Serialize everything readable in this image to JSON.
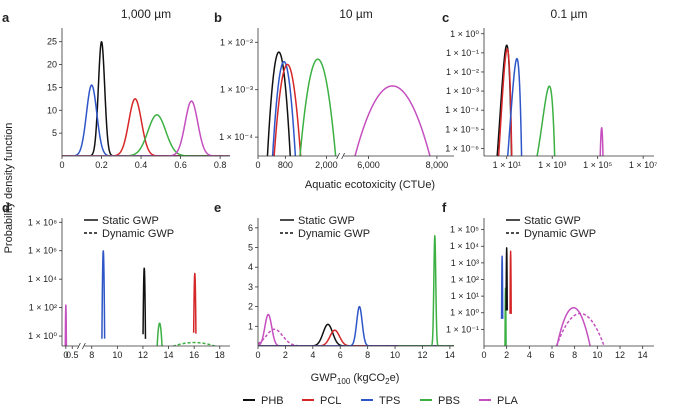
{
  "figure": {
    "ylabel": "Probability density function",
    "xlabel_top": "Aquatic ecotoxicity (CTUe)",
    "xlabel_bottom_main": "GWP",
    "xlabel_bottom_sub": "100",
    "xlabel_bottom_unit_pre": " (kgCO",
    "xlabel_bottom_unit_sub": "2",
    "xlabel_bottom_unit_post": "e)"
  },
  "legend_bottom": [
    {
      "name": "PHB",
      "color": "#111111"
    },
    {
      "name": "PCL",
      "color": "#d62728"
    },
    {
      "name": "TPS",
      "color": "#2e56c8"
    },
    {
      "name": "PBS",
      "color": "#3cb043"
    },
    {
      "name": "PLA",
      "color": "#c54fbf"
    }
  ],
  "gwp_legend": {
    "static": "Static GWP",
    "dynamic": "Dynamic GWP"
  },
  "chart_data": [
    {
      "id": "a",
      "panel_label": "a",
      "title": "1,000 µm",
      "type": "line",
      "xscale": "linear",
      "yscale": "linear",
      "xlim": [
        0,
        0.85
      ],
      "ylim": [
        0,
        28
      ],
      "xticks": [
        0,
        0.2,
        0.4,
        0.6,
        0.8
      ],
      "xtick_labels": [
        "0",
        "0.2",
        "0.4",
        "0.6",
        "0.8"
      ],
      "yticks": [
        5,
        10,
        15,
        20,
        25
      ],
      "ytick_labels": [
        "5",
        "10",
        "15",
        "20",
        "25"
      ],
      "series": [
        {
          "name": "PHB",
          "style": "solid",
          "peaks": [
            {
              "mu": 0.2,
              "sd": 0.016,
              "amp": 25
            }
          ]
        },
        {
          "name": "TPS",
          "style": "solid",
          "peaks": [
            {
              "mu": 0.15,
              "sd": 0.026,
              "amp": 15.5
            }
          ]
        },
        {
          "name": "PCL",
          "style": "solid",
          "peaks": [
            {
              "mu": 0.37,
              "sd": 0.032,
              "amp": 12.5
            }
          ]
        },
        {
          "name": "PBS",
          "style": "solid",
          "peaks": [
            {
              "mu": 0.48,
              "sd": 0.045,
              "amp": 9
            }
          ]
        },
        {
          "name": "PLA",
          "style": "solid",
          "peaks": [
            {
              "mu": 0.655,
              "sd": 0.032,
              "amp": 12
            }
          ]
        }
      ]
    },
    {
      "id": "b",
      "panel_label": "b",
      "title": "10 µm",
      "type": "line",
      "xscale": "broken",
      "yscale": "log",
      "xsegments": [
        [
          0,
          2300
        ],
        [
          5300,
          8500
        ]
      ],
      "axis_break": true,
      "ylim": [
        4e-05,
        0.02
      ],
      "xticks": [
        0,
        800,
        2000,
        6000,
        8000
      ],
      "xtick_labels": [
        "0",
        "800",
        "2,000",
        "6,000",
        "8,000"
      ],
      "yticks": [
        0.0001,
        0.001,
        0.01
      ],
      "ytick_labels": [
        "1 × 10⁻⁴",
        "1 × 10⁻³",
        "1 × 10⁻²"
      ],
      "series": [
        {
          "name": "PHB",
          "style": "solid",
          "peaks": [
            {
              "mu": 610,
              "sd": 105,
              "amp": 0.0062
            }
          ]
        },
        {
          "name": "TPS",
          "style": "solid",
          "peaks": [
            {
              "mu": 760,
              "sd": 110,
              "amp": 0.0039
            }
          ]
        },
        {
          "name": "PCL",
          "style": "solid",
          "peaks": [
            {
              "mu": 860,
              "sd": 130,
              "amp": 0.0034
            }
          ]
        },
        {
          "name": "PBS",
          "style": "solid",
          "peaks": [
            {
              "mu": 1750,
              "sd": 170,
              "amp": 0.0044
            }
          ]
        },
        {
          "name": "PLA",
          "style": "solid",
          "peaks": [
            {
              "mu": 6700,
              "sd": 420,
              "amp": 0.0012
            }
          ]
        }
      ]
    },
    {
      "id": "c",
      "panel_label": "c",
      "title": "0.1 µm",
      "type": "line",
      "xscale": "log",
      "yscale": "log",
      "xlim": [
        1,
        30000000
      ],
      "ylim": [
        4e-07,
        2
      ],
      "xticks": [
        10,
        1000,
        100000,
        10000000
      ],
      "xtick_labels": [
        "1 × 10¹",
        "1 × 10³",
        "1 × 10⁵",
        "1 × 10⁷"
      ],
      "yticks": [
        1e-06,
        1e-05,
        0.0001,
        0.001,
        0.01,
        0.1,
        1
      ],
      "ytick_labels": [
        "1 × 10⁻⁶",
        "1 × 10⁻⁵",
        "1 × 10⁻⁴",
        "1 × 10⁻³",
        "1 × 10⁻²",
        "1 × 10⁻¹",
        "1 × 10⁰"
      ],
      "series": [
        {
          "name": "PHB",
          "style": "solid",
          "peaks": [
            {
              "mu": 10,
              "sd": 1.2,
              "amp": 0.25
            }
          ]
        },
        {
          "name": "PCL",
          "style": "solid",
          "peaks": [
            {
              "mu": 10.5,
              "sd": 1.2,
              "amp": 0.16
            }
          ]
        },
        {
          "name": "TPS",
          "style": "solid",
          "peaks": [
            {
              "mu": 28,
              "sd": 3.5,
              "amp": 0.05
            }
          ]
        },
        {
          "name": "PBS",
          "style": "solid",
          "peaks": [
            {
              "mu": 750,
              "sd": 130,
              "amp": 0.0018
            }
          ]
        },
        {
          "name": "PLA",
          "style": "solid",
          "peaks": [
            {
              "mu": 150000,
              "sd": 8000,
              "amp": 1.2e-05
            }
          ]
        }
      ]
    },
    {
      "id": "d",
      "panel_label": "d",
      "type": "line",
      "xscale": "broken",
      "yscale": "log",
      "xsegments": [
        [
          -0.3,
          0.9
        ],
        [
          7.5,
          18.8
        ]
      ],
      "axis_break": true,
      "ylim": [
        0.2,
        200000000
      ],
      "xticks": [
        0,
        0.5,
        8,
        10,
        12,
        14,
        16,
        18
      ],
      "xtick_labels": [
        "0",
        "0.5",
        "8",
        "10",
        "12",
        "14",
        "16",
        "18"
      ],
      "yticks": [
        1,
        100,
        10000,
        1000000,
        100000000
      ],
      "ytick_labels": [
        "1 × 10⁰",
        "1 × 10²",
        "1 × 10⁴",
        "1 × 10⁶",
        "1 × 10⁸"
      ],
      "series": [
        {
          "name": "PLA",
          "style": "solid",
          "peaks": [
            {
              "mu": 0,
              "sd": 0.012,
              "amp": 150
            }
          ]
        },
        {
          "name": "TPS",
          "style": "solid",
          "peaks": [
            {
              "mu": 8.9,
              "sd": 0.02,
              "amp": 1000000
            }
          ]
        },
        {
          "name": "PHB",
          "style": "solid",
          "peaks": [
            {
              "mu": 12.1,
              "sd": 0.02,
              "amp": 60000
            }
          ]
        },
        {
          "name": "PBS",
          "style": "solid",
          "peaks": [
            {
              "mu": 13.3,
              "sd": 0.07,
              "amp": 8
            }
          ]
        },
        {
          "name": "PCL",
          "style": "solid",
          "peaks": [
            {
              "mu": 16.05,
              "sd": 0.02,
              "amp": 25000
            }
          ]
        },
        {
          "name": "PBS",
          "style": "dashed",
          "peaks": [
            {
              "mu": 16,
              "sd": 1.5,
              "amp": 0.35
            }
          ]
        }
      ]
    },
    {
      "id": "e",
      "panel_label": "e",
      "type": "line",
      "xscale": "linear",
      "yscale": "linear",
      "xlim": [
        0,
        14.3
      ],
      "ylim": [
        0,
        6.5
      ],
      "xticks": [
        0,
        2,
        4,
        6,
        8,
        10,
        12,
        14
      ],
      "xtick_labels": [
        "0",
        "2",
        "4",
        "6",
        "8",
        "10",
        "12",
        "14"
      ],
      "yticks": [
        1,
        2,
        3,
        4,
        5,
        6
      ],
      "ytick_labels": [
        "1",
        "2",
        "3",
        "4",
        "5",
        "6"
      ],
      "series": [
        {
          "name": "PLA",
          "style": "solid",
          "peaks": [
            {
              "mu": 0.75,
              "sd": 0.25,
              "amp": 1.6
            }
          ]
        },
        {
          "name": "PLA",
          "style": "dashed",
          "peaks": [
            {
              "mu": 1.2,
              "sd": 0.6,
              "amp": 0.85
            }
          ]
        },
        {
          "name": "PHB",
          "style": "solid",
          "peaks": [
            {
              "mu": 5.1,
              "sd": 0.35,
              "amp": 1.1
            }
          ]
        },
        {
          "name": "PCL",
          "style": "solid",
          "peaks": [
            {
              "mu": 5.6,
              "sd": 0.35,
              "amp": 0.8
            }
          ]
        },
        {
          "name": "TPS",
          "style": "solid",
          "peaks": [
            {
              "mu": 7.4,
              "sd": 0.2,
              "amp": 2.0
            }
          ]
        },
        {
          "name": "PBS",
          "style": "solid",
          "peaks": [
            {
              "mu": 12.9,
              "sd": 0.07,
              "amp": 5.6
            }
          ]
        }
      ]
    },
    {
      "id": "f",
      "panel_label": "f",
      "type": "line",
      "xscale": "linear",
      "yscale": "log",
      "xlim": [
        0,
        15
      ],
      "ylim": [
        0.01,
        500000
      ],
      "xticks": [
        0,
        2,
        4,
        6,
        8,
        10,
        12,
        14
      ],
      "xtick_labels": [
        "0",
        "2",
        "4",
        "6",
        "8",
        "10",
        "12",
        "14"
      ],
      "yticks": [
        0.1,
        1,
        10,
        100,
        1000,
        10000,
        100000
      ],
      "ytick_labels": [
        "1 × 10⁻¹",
        "1 × 10⁰",
        "1 × 10¹",
        "1 × 10²",
        "1 × 10³",
        "1 × 10⁴",
        "1 × 10⁵"
      ],
      "series": [
        {
          "name": "TPS",
          "style": "solid",
          "peaks": [
            {
              "mu": 1.6,
              "sd": 0.012,
              "amp": 2500
            }
          ]
        },
        {
          "name": "PBS",
          "style": "solid",
          "peaks": [
            {
              "mu": 1.9,
              "sd": 0.012,
              "amp": 30
            }
          ]
        },
        {
          "name": "PHB",
          "style": "solid",
          "peaks": [
            {
              "mu": 2.0,
              "sd": 0.012,
              "amp": 8000
            }
          ]
        },
        {
          "name": "PCL",
          "style": "solid",
          "peaks": [
            {
              "mu": 2.35,
              "sd": 0.012,
              "amp": 5000
            }
          ]
        },
        {
          "name": "PLA",
          "style": "solid",
          "peaks": [
            {
              "mu": 7.9,
              "sd": 0.45,
              "amp": 2.0
            }
          ]
        },
        {
          "name": "PLA",
          "style": "dashed",
          "peaks": [
            {
              "mu": 8.5,
              "sd": 0.7,
              "amp": 0.9
            }
          ]
        }
      ]
    }
  ]
}
